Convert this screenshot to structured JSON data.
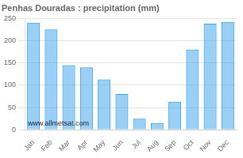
{
  "chart_data": {
    "type": "bar",
    "title": "Penhas Douradas : precipitation (mm)",
    "categories": [
      "Jan",
      "Feb",
      "Mar",
      "Apr",
      "May",
      "Jun",
      "Jul",
      "Aug",
      "Sep",
      "Oct",
      "Nov",
      "Dec"
    ],
    "values": [
      240,
      225,
      145,
      140,
      113,
      80,
      25,
      15,
      63,
      180,
      238,
      242
    ],
    "ylim": [
      0,
      250
    ],
    "yticks": [
      0,
      50,
      100,
      150,
      200,
      250
    ],
    "grid": true,
    "annotation": "www.allmetsat.com"
  }
}
